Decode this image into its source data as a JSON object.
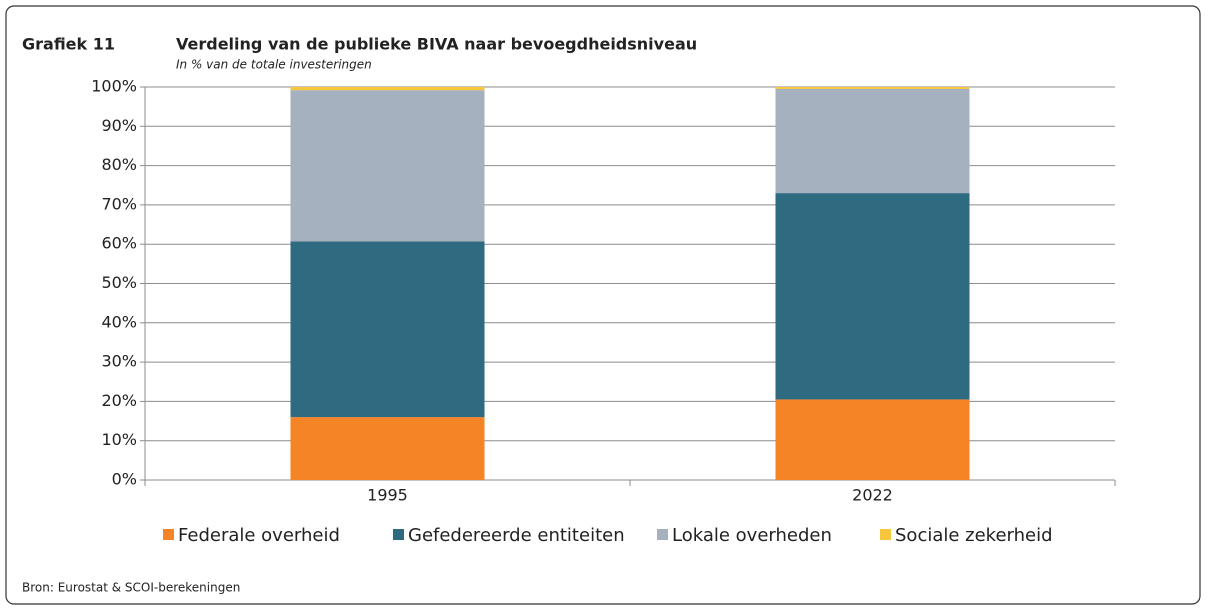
{
  "label": "Grafiek 11",
  "source": "Bron: Eurostat & SCOI-berekeningen",
  "chart_data": {
    "type": "stacked_bar",
    "title": "Verdeling van de publieke BIVA  naar bevoegdheidsniveau",
    "subtitle": "In % van de totale investeringen",
    "categories": [
      "1995",
      "2022"
    ],
    "series": [
      {
        "name": "Federale overheid",
        "color": "#f58426",
        "values": [
          16,
          20.5
        ]
      },
      {
        "name": "Gefedereerde entiteiten",
        "color": "#2e6a80",
        "values": [
          44.7,
          52.5
        ]
      },
      {
        "name": "Lokale overheden",
        "color": "#a5b1be",
        "values": [
          38.5,
          26.5
        ]
      },
      {
        "name": "Sociale zekerheid",
        "color": "#f7c63c",
        "values": [
          0.8,
          0.5
        ]
      }
    ],
    "ylim": [
      0,
      100
    ],
    "yticks": [
      {
        "value": 0,
        "label": "0%"
      },
      {
        "value": 10,
        "label": "10%"
      },
      {
        "value": 20,
        "label": "20%"
      },
      {
        "value": 30,
        "label": "30%"
      },
      {
        "value": 40,
        "label": "40%"
      },
      {
        "value": 50,
        "label": "50%"
      },
      {
        "value": 60,
        "label": "60%"
      },
      {
        "value": 70,
        "label": "70%"
      },
      {
        "value": 80,
        "label": "80%"
      },
      {
        "value": 90,
        "label": "90%"
      },
      {
        "value": 100,
        "label": "100%"
      }
    ],
    "grid": true,
    "legend": "bottom"
  }
}
